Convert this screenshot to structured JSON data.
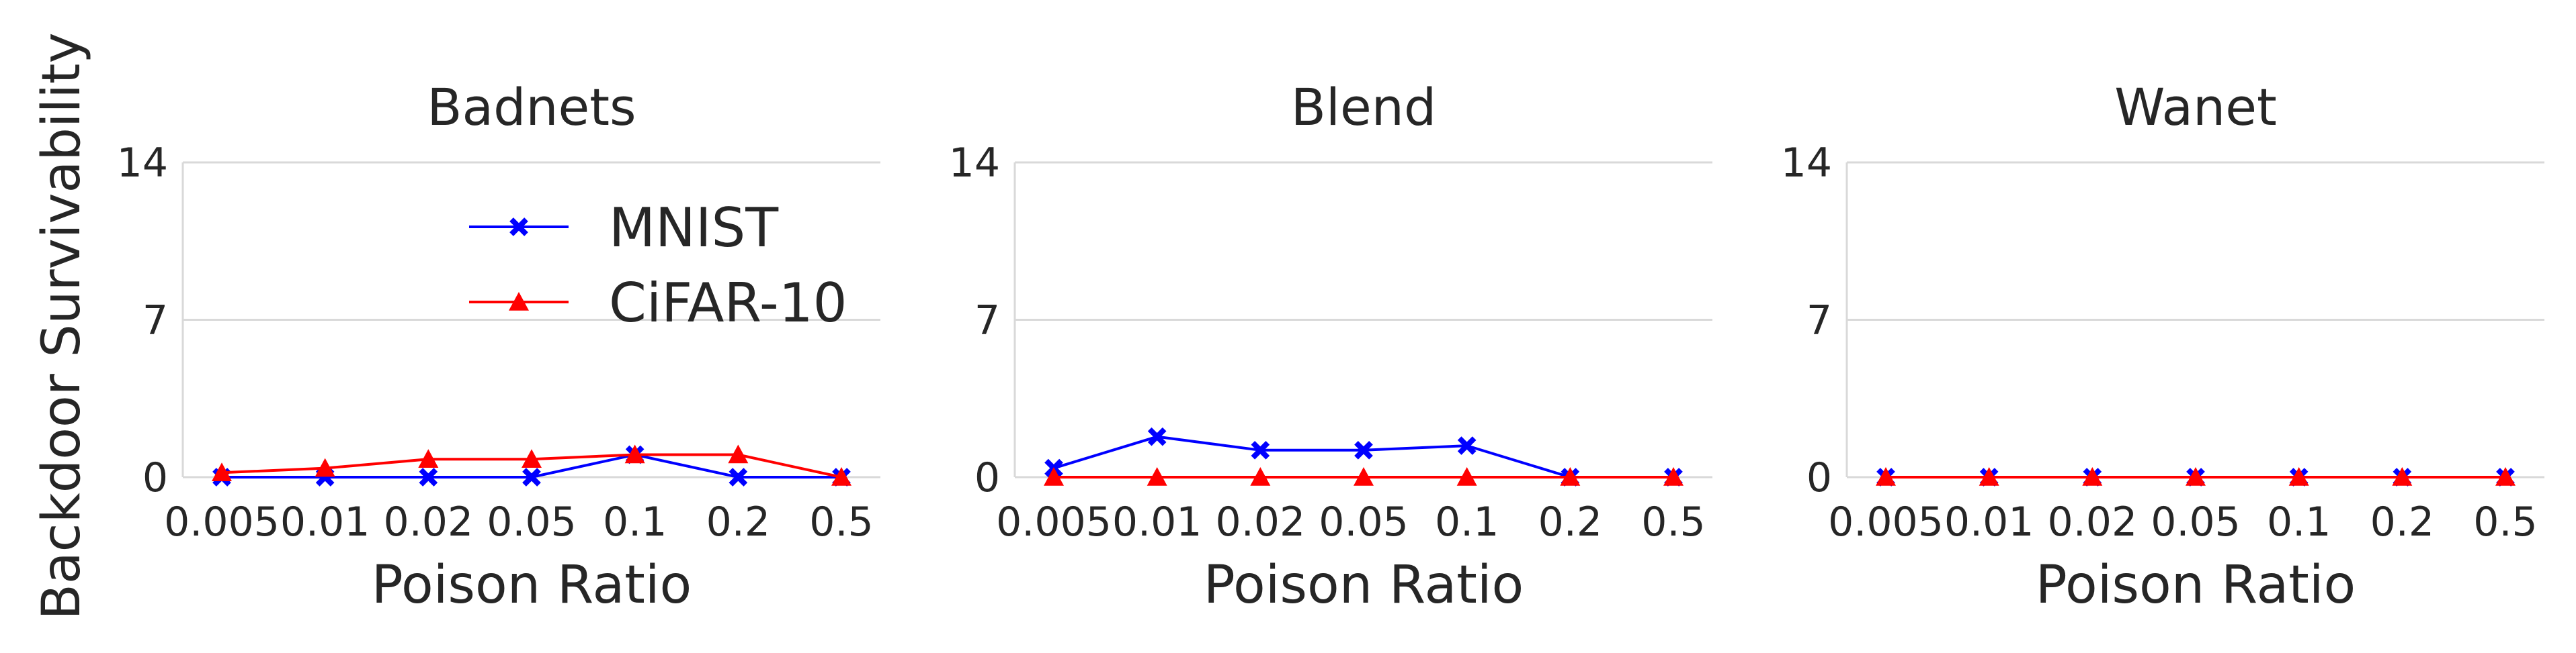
{
  "figure": {
    "ylabel": "Backdoor Survivability"
  },
  "colors": {
    "mnist": "#0000ff",
    "cifar": "#ff0000",
    "grid": "#d9d9d9",
    "text": "#262626"
  },
  "legend": {
    "placement": "top-right",
    "items": [
      {
        "label": "MNIST",
        "color": "#0000ff",
        "marker": "x"
      },
      {
        "label": "CiFAR-10",
        "color": "#ff0000",
        "marker": "triangle"
      }
    ]
  },
  "chart_data": [
    {
      "type": "line",
      "title": "Badnets",
      "xlabel": "Poison Ratio",
      "ylabel": "Backdoor Survivability",
      "categories": [
        "0.005",
        "0.01",
        "0.02",
        "0.05",
        "0.1",
        "0.2",
        "0.5"
      ],
      "ylim": [
        0,
        14
      ],
      "yticks": [
        "0",
        "7",
        "14"
      ],
      "grid": true,
      "series": [
        {
          "name": "MNIST",
          "values": [
            0,
            0,
            0,
            0,
            1,
            0,
            0
          ]
        },
        {
          "name": "CiFAR-10",
          "values": [
            0.2,
            0.4,
            0.8,
            0.8,
            1,
            1,
            0
          ]
        }
      ]
    },
    {
      "type": "line",
      "title": "Blend",
      "xlabel": "Poison Ratio",
      "ylabel": "",
      "categories": [
        "0.005",
        "0.01",
        "0.02",
        "0.05",
        "0.1",
        "0.2",
        "0.5"
      ],
      "ylim": [
        0,
        14
      ],
      "yticks": [
        "0",
        "7",
        "14"
      ],
      "grid": true,
      "series": [
        {
          "name": "MNIST",
          "values": [
            0.4,
            1.8,
            1.2,
            1.2,
            1.4,
            0,
            0
          ]
        },
        {
          "name": "CiFAR-10",
          "values": [
            0,
            0,
            0,
            0,
            0,
            0,
            0
          ]
        }
      ]
    },
    {
      "type": "line",
      "title": "Wanet",
      "xlabel": "Poison Ratio",
      "ylabel": "",
      "categories": [
        "0.005",
        "0.01",
        "0.02",
        "0.05",
        "0.1",
        "0.2",
        "0.5"
      ],
      "ylim": [
        0,
        14
      ],
      "yticks": [
        "0",
        "7",
        "14"
      ],
      "grid": true,
      "series": [
        {
          "name": "MNIST",
          "values": [
            0,
            0,
            0,
            0,
            0,
            0,
            0
          ]
        },
        {
          "name": "CiFAR-10",
          "values": [
            0,
            0,
            0,
            0,
            0,
            0,
            0
          ]
        }
      ]
    }
  ]
}
